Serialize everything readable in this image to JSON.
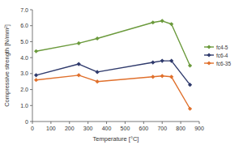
{
  "chart_data": {
    "type": "line",
    "x_label": "Temperature [°C]",
    "y_label": "Compressive strength [N/mm²]",
    "x": [
      20,
      250,
      350,
      650,
      700,
      750,
      850
    ],
    "series": [
      {
        "name": "fc4-5",
        "color": "#6b9a3c",
        "marker": "diamond",
        "values": [
          4.4,
          4.9,
          5.2,
          6.2,
          6.3,
          6.1,
          3.5
        ]
      },
      {
        "name": "fc6-4",
        "color": "#2f3a6c",
        "marker": "diamond",
        "values": [
          2.9,
          3.6,
          3.1,
          3.7,
          3.8,
          3.8,
          2.3
        ]
      },
      {
        "name": "fc6-35",
        "color": "#e0702c",
        "marker": "diamond",
        "values": [
          2.6,
          2.9,
          2.5,
          2.8,
          2.85,
          2.8,
          0.8
        ]
      }
    ],
    "xlim": [
      0,
      900
    ],
    "xticks": [
      0,
      100,
      200,
      300,
      400,
      500,
      600,
      700,
      800,
      900
    ],
    "ylim": [
      0,
      7
    ],
    "yticks": [
      0,
      {
        "value": 1,
        "label": "1.0"
      },
      {
        "value": 2,
        "label": "2.0"
      },
      {
        "value": 3,
        "label": "3.0"
      },
      {
        "value": 4,
        "label": "4.0"
      },
      {
        "value": 5,
        "label": "5.0"
      },
      {
        "value": 6,
        "label": "6.0"
      },
      {
        "value": 7,
        "label": "7.0"
      }
    ],
    "grid": false,
    "legend": "right"
  }
}
